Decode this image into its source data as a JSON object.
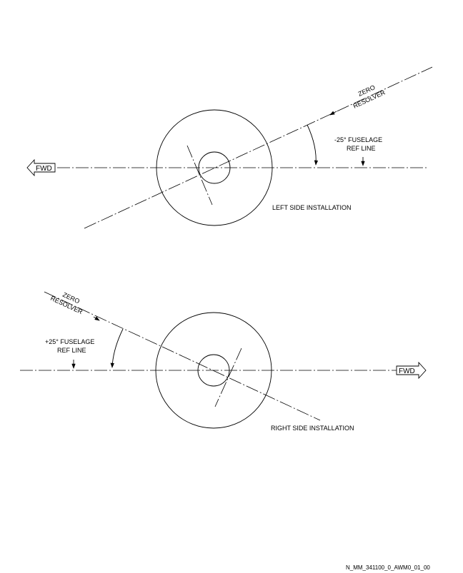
{
  "top": {
    "fwd_label": "FWD",
    "zero_label": "ZERO",
    "resolver_label": "RESOLVER",
    "angle_label": "-25° FUSELAGE",
    "ref_line_label": "REF LINE",
    "caption": "LEFT SIDE INSTALLATION"
  },
  "bottom": {
    "fwd_label": "FWD",
    "zero_label": "ZERO",
    "resolver_label": "RESOLVER",
    "angle_label": "+25° FUSELAGE",
    "ref_line_label": "REF LINE",
    "caption": "RIGHT SIDE INSTALLATION"
  },
  "figure_id": "N_MM_341100_0_AWM0_01_00"
}
